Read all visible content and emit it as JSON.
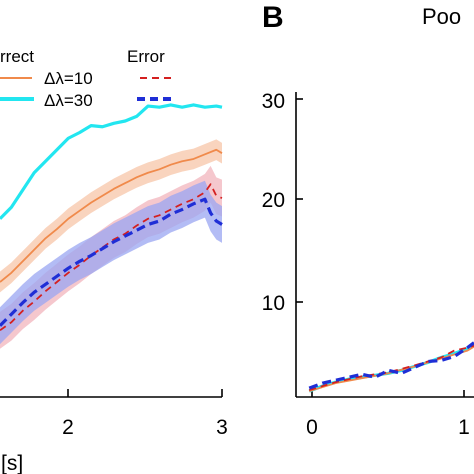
{
  "panel_b_letter": "B",
  "panel_b_title": "Poo",
  "legend": {
    "correct_header": "rrect",
    "error_header": "Error",
    "row1_label": "Δλ=10",
    "row2_label": "Δλ=30"
  },
  "colors": {
    "correct_10": "#f08a4b",
    "correct_10_band": "#f7c5a8",
    "correct_30": "#22e6f0",
    "error_10": "#d42020",
    "error_10_band": "#f2b4bc",
    "error_30": "#1f2ed6",
    "error_30_band": "#9aa6f2"
  },
  "chart_data": [
    {
      "type": "line",
      "panel": "A",
      "xlabel": "[s]",
      "x_ticks": [
        "2",
        "3"
      ],
      "xlim": [
        1.05,
        3.0
      ],
      "ylim": [
        0,
        30
      ],
      "series": [
        {
          "name": "Correct Δλ=30",
          "style": "solid",
          "x": [
            1.05,
            1.15,
            1.25,
            1.35,
            1.45,
            1.55,
            1.65,
            1.75,
            1.85,
            1.95,
            2.05,
            2.15,
            2.25,
            2.35,
            2.45,
            2.55,
            2.65,
            2.75,
            2.85,
            2.95,
            3.0
          ],
          "y": [
            15.5,
            16.5,
            18,
            19.5,
            20.5,
            21.5,
            22.5,
            23,
            23.6,
            23.5,
            23.8,
            24,
            24.4,
            25.3,
            25.2,
            25.4,
            25.2,
            25.4,
            25.2,
            25.3,
            25.2
          ]
        },
        {
          "name": "Correct Δλ=10",
          "style": "solid",
          "x": [
            1.05,
            1.15,
            1.25,
            1.35,
            1.45,
            1.55,
            1.65,
            1.75,
            1.85,
            1.95,
            2.05,
            2.15,
            2.25,
            2.35,
            2.45,
            2.55,
            2.65,
            2.75,
            2.85,
            2.95,
            3.0
          ],
          "y": [
            10,
            10.8,
            11.8,
            12.8,
            13.8,
            14.6,
            15.5,
            16.2,
            16.9,
            17.5,
            18.1,
            18.6,
            19.1,
            19.5,
            19.8,
            20.2,
            20.5,
            20.7,
            21.1,
            21.5,
            21.2
          ]
        },
        {
          "name": "Error Δλ=10",
          "style": "dashed",
          "x": [
            1.05,
            1.15,
            1.25,
            1.35,
            1.45,
            1.55,
            1.65,
            1.75,
            1.85,
            1.95,
            2.05,
            2.15,
            2.25,
            2.35,
            2.45,
            2.55,
            2.65,
            2.75,
            2.85,
            2.9,
            2.95,
            3.0
          ],
          "y": [
            5.8,
            6.5,
            7.5,
            8.3,
            9.2,
            10,
            10.8,
            11.5,
            12.3,
            13,
            13.7,
            14.2,
            14.9,
            15.5,
            15.8,
            16.3,
            16.8,
            17.2,
            17.8,
            18.5,
            17.5,
            17.3
          ]
        },
        {
          "name": "Error Δλ=30",
          "style": "dashed",
          "x": [
            1.05,
            1.15,
            1.25,
            1.35,
            1.45,
            1.55,
            1.65,
            1.75,
            1.85,
            1.95,
            2.05,
            2.15,
            2.25,
            2.35,
            2.45,
            2.55,
            2.65,
            2.75,
            2.85,
            2.9,
            2.95,
            3.0
          ],
          "y": [
            6.2,
            7.2,
            8.2,
            9.1,
            9.8,
            10.5,
            11.2,
            11.8,
            12.3,
            12.9,
            13.5,
            14,
            14.5,
            15,
            15.3,
            15.9,
            16.3,
            16.8,
            17.2,
            16,
            15.3,
            15
          ]
        }
      ]
    },
    {
      "type": "line",
      "panel": "B",
      "title": "Poo",
      "x_ticks": [
        "0",
        "1"
      ],
      "y_ticks": [
        "10",
        "20",
        "30"
      ],
      "xlim": [
        -0.1,
        1.25
      ],
      "ylim": [
        -0.1,
        31.5
      ],
      "series": [
        {
          "name": "Correct Δλ=30",
          "style": "solid",
          "x": [
            0,
            0.1,
            0.2,
            0.3,
            0.4,
            0.5,
            0.6,
            0.7,
            0.8,
            0.9,
            1.0,
            1.1,
            1.2,
            1.25
          ],
          "y": [
            0.5,
            1.0,
            1.4,
            1.7,
            1.9,
            2.1,
            2.3,
            2.6,
            3.0,
            3.4,
            3.9,
            4.3,
            4.8,
            5.2
          ]
        },
        {
          "name": "Correct Δλ=10",
          "style": "solid",
          "x": [
            0,
            0.2,
            0.4,
            0.6,
            0.8,
            1.0,
            1.1,
            1.2,
            1.25
          ],
          "y": [
            0.5,
            1.3,
            1.8,
            2.3,
            3.0,
            3.8,
            4.2,
            4.6,
            5.0
          ]
        },
        {
          "name": "Error Δλ=10",
          "style": "dashed",
          "x": [
            0,
            0.2,
            0.4,
            0.6,
            0.8,
            1.0,
            1.1,
            1.2,
            1.25
          ],
          "y": [
            0.6,
            1.4,
            2.0,
            2.4,
            3.1,
            3.9,
            4.6,
            4.9,
            5.1
          ]
        },
        {
          "name": "Error Δλ=30",
          "style": "dashed",
          "x": [
            0,
            0.1,
            0.2,
            0.3,
            0.4,
            0.5,
            0.6,
            0.7,
            0.8,
            0.9,
            1.0,
            1.1,
            1.2,
            1.25
          ],
          "y": [
            0.8,
            1.3,
            1.6,
            1.9,
            2.2,
            1.9,
            2.6,
            2.3,
            2.9,
            3.5,
            3.6,
            4.0,
            4.9,
            5.4
          ]
        }
      ]
    }
  ]
}
